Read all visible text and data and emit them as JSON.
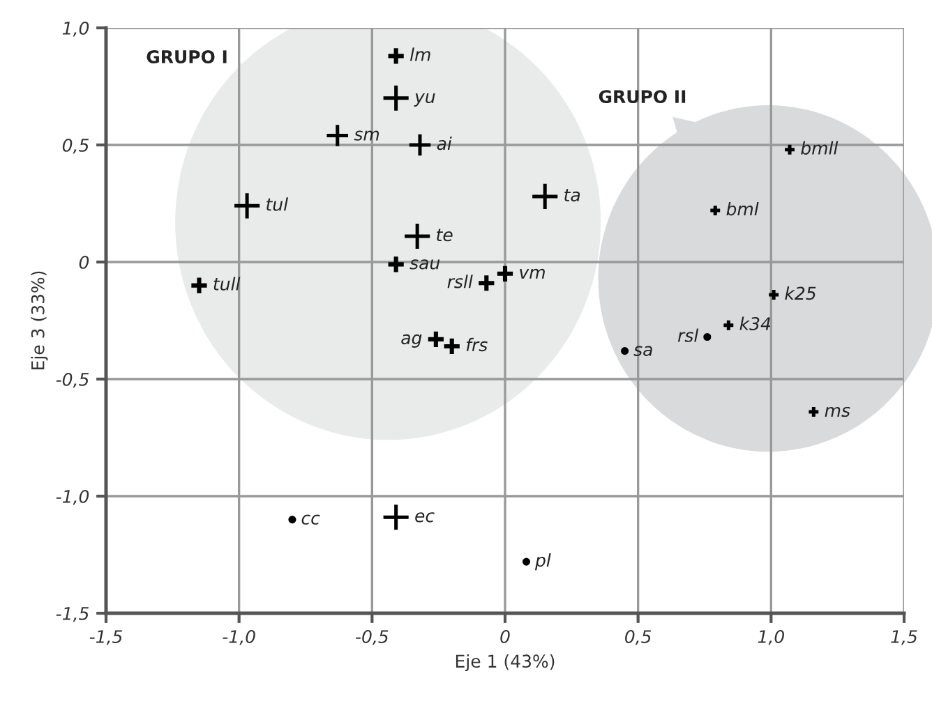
{
  "chart_data": {
    "type": "scatter",
    "xlabel": "Eje 1 (43%)",
    "ylabel": "Eje 3 (33%)",
    "xlim": [
      -1.5,
      1.5
    ],
    "ylim": [
      -1.5,
      1.0
    ],
    "xticks": [
      {
        "value": -1.5,
        "label": "-1,5"
      },
      {
        "value": -1.0,
        "label": "-1,0"
      },
      {
        "value": -0.5,
        "label": "-0,5"
      },
      0,
      {
        "value": 0.5,
        "label": "0,5"
      },
      {
        "value": 1.0,
        "label": "1,0"
      },
      {
        "value": 1.5,
        "label": "1,5"
      }
    ],
    "yticks": [
      {
        "value": -1.5,
        "label": "-1,5"
      },
      {
        "value": -1.0,
        "label": "-1,0"
      },
      {
        "value": -0.5,
        "label": "-0,5"
      },
      0,
      {
        "value": 0.5,
        "label": "0,5"
      },
      {
        "value": 1.0,
        "label": "1,0"
      }
    ],
    "grid": true,
    "legend": false,
    "series": [
      {
        "color": "#000000",
        "marker": "cross",
        "x": [
          -0.41,
          -0.97,
          -0.33,
          0.15,
          -0.41
        ],
        "values": [
          0.7,
          0.24,
          0.11,
          0.28,
          -1.09
        ]
      },
      {
        "color": "#000000",
        "marker": "cross",
        "x": [
          -0.63,
          -0.32
        ],
        "values": [
          0.54,
          0.5
        ]
      },
      {
        "color": "#000000",
        "marker": "cross",
        "x": [
          -0.41,
          -0.41,
          -1.15,
          -0.07,
          0.0,
          -0.26,
          -0.2
        ],
        "values": [
          0.88,
          -0.01,
          -0.1,
          -0.09,
          -0.05,
          -0.33,
          -0.36
        ]
      },
      {
        "color": "#000000",
        "marker": "cross",
        "x": [
          0.79,
          1.07,
          1.01,
          0.84,
          1.16
        ],
        "values": [
          0.22,
          0.48,
          -0.14,
          -0.27,
          -0.64
        ]
      },
      {
        "color": "#000000",
        "marker": "circle",
        "x": [
          -0.8,
          0.08,
          0.45,
          0.76
        ],
        "values": [
          -1.1,
          -1.28,
          -0.38,
          -0.32
        ]
      }
    ],
    "annotations": [
      "GRUPO I",
      "GRUPO II",
      {
        "text": "lm",
        "x": -0.41,
        "y": 0.88
      },
      {
        "text": "yu",
        "x": -0.41,
        "y": 0.7
      },
      {
        "text": "sm",
        "x": -0.63,
        "y": 0.54
      },
      {
        "text": "ai",
        "x": -0.32,
        "y": 0.5
      },
      {
        "text": "tul",
        "x": -0.97,
        "y": 0.24
      },
      {
        "text": "te",
        "x": -0.33,
        "y": 0.11
      },
      {
        "text": "sau",
        "x": -0.41,
        "y": -0.01
      },
      {
        "text": "tull",
        "x": -1.15,
        "y": -0.1
      },
      {
        "text": "rsll",
        "x": -0.07,
        "y": -0.09
      },
      {
        "text": "vm",
        "x": 0.0,
        "y": -0.05
      },
      {
        "text": "ag",
        "x": -0.26,
        "y": -0.33
      },
      {
        "text": "frs",
        "x": -0.2,
        "y": -0.36
      },
      {
        "text": "ta",
        "x": 0.15,
        "y": 0.28
      },
      {
        "text": "cc",
        "x": -0.8,
        "y": -1.1
      },
      {
        "text": "ec",
        "x": -0.41,
        "y": -1.09
      },
      {
        "text": "pl",
        "x": 0.08,
        "y": -1.28
      },
      {
        "text": "bmll",
        "x": 1.07,
        "y": 0.48
      },
      {
        "text": "bml",
        "x": 0.79,
        "y": 0.22
      },
      {
        "text": "k25",
        "x": 1.01,
        "y": -0.14
      },
      {
        "text": "k34",
        "x": 0.84,
        "y": -0.27
      },
      {
        "text": "rsl",
        "x": 0.76,
        "y": -0.32
      },
      {
        "text": "sa",
        "x": 0.45,
        "y": -0.38
      },
      {
        "text": "ms",
        "x": 1.16,
        "y": -0.64
      }
    ]
  }
}
